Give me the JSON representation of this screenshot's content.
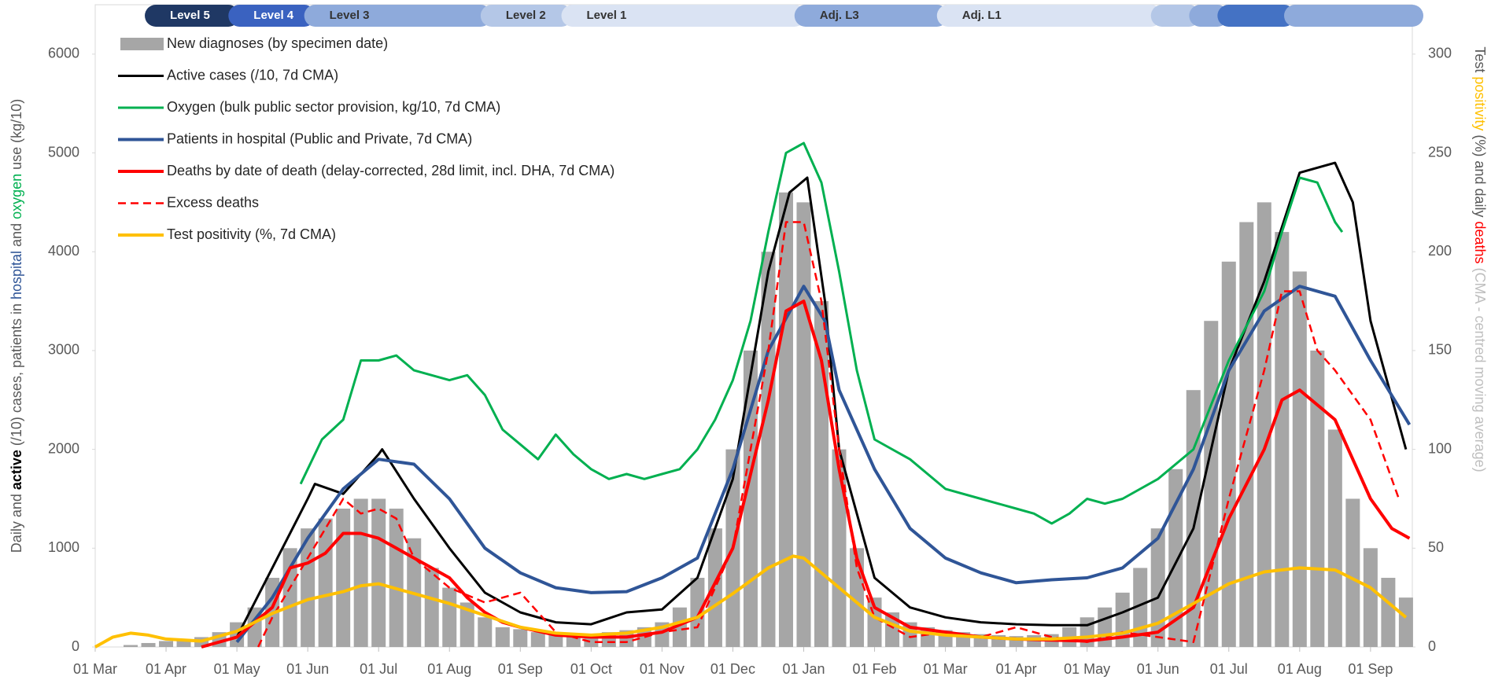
{
  "chart_data": {
    "type": "line",
    "xlim": [
      0,
      18.59
    ],
    "xticks": [
      {
        "value": 0,
        "label": "01 Mar"
      },
      {
        "value": 1,
        "label": "01 Apr"
      },
      {
        "value": 2,
        "label": "01 May"
      },
      {
        "value": 3,
        "label": "01 Jun"
      },
      {
        "value": 4,
        "label": "01 Jul"
      },
      {
        "value": 5,
        "label": "01 Aug"
      },
      {
        "value": 6,
        "label": "01 Sep"
      },
      {
        "value": 7,
        "label": "01 Oct"
      },
      {
        "value": 8,
        "label": "01 Nov"
      },
      {
        "value": 9,
        "label": "01 Dec"
      },
      {
        "value": 10,
        "label": "01 Jan"
      },
      {
        "value": 11,
        "label": "01 Feb"
      },
      {
        "value": 12,
        "label": "01 Mar"
      },
      {
        "value": 13,
        "label": "01 Apr"
      },
      {
        "value": 14,
        "label": "01 May"
      },
      {
        "value": 15,
        "label": "01 Jun"
      },
      {
        "value": 16,
        "label": "01 Jul"
      },
      {
        "value": 17,
        "label": "01 Aug"
      },
      {
        "value": 18,
        "label": "01 Sep"
      }
    ],
    "ylim": [
      0,
      6500
    ],
    "yticks": [
      0,
      1000,
      2000,
      3000,
      4000,
      5000,
      6000
    ],
    "y2lim": [
      0,
      325
    ],
    "y2ticks": [
      0,
      50,
      100,
      150,
      200,
      250,
      300
    ],
    "grid": false,
    "legend": "upper left",
    "ylabel": [
      {
        "text": "Daily and ",
        "color": "#595959"
      },
      {
        "text": "active",
        "color": "#000000"
      },
      {
        "text": " (/10) cases, patients in ",
        "color": "#595959"
      },
      {
        "text": "hospital",
        "color": "#2f5597"
      },
      {
        "text": " and ",
        "color": "#595959"
      },
      {
        "text": "oxygen",
        "color": "#00b050"
      },
      {
        "text": " use (kg/10)",
        "color": "#595959"
      }
    ],
    "y2label": [
      {
        "text": "Test ",
        "color": "#595959"
      },
      {
        "text": "positivity",
        "color": "#ffc000"
      },
      {
        "text": " (%) and daily ",
        "color": "#595959"
      },
      {
        "text": "deaths",
        "color": "#ff0000"
      },
      {
        "text": " (CMA - centred moving average)",
        "color": "#bfbfbf"
      }
    ],
    "levels": [
      {
        "label": "Level 5",
        "start": 0.7,
        "end": 1.88,
        "color": "#1f3864"
      },
      {
        "label": "Level 4",
        "start": 1.88,
        "end": 2.95,
        "color": "#3a62c0"
      },
      {
        "label": "Level 3",
        "start": 2.95,
        "end": 5.44,
        "color": "#8eaadb"
      },
      {
        "label": "Level 2",
        "start": 5.44,
        "end": 6.58,
        "color": "#b4c7e7"
      },
      {
        "label": "Level 1",
        "start": 6.58,
        "end": 9.87,
        "color": "#dae3f3"
      },
      {
        "label": "Adj. L3",
        "start": 9.87,
        "end": 11.88,
        "color": "#8eaadb"
      },
      {
        "label": "Adj. L1",
        "start": 11.88,
        "end": 14.9,
        "color": "#dae3f3"
      },
      {
        "label": null,
        "start": 14.9,
        "end": 15.44,
        "color": "#b4c7e7"
      },
      {
        "label": null,
        "start": 15.44,
        "end": 15.84,
        "color": "#8eaadb"
      },
      {
        "label": null,
        "start": 15.84,
        "end": 16.78,
        "color": "#4472c4"
      },
      {
        "label": null,
        "start": 16.78,
        "end": 18.59,
        "color": "#8eaadb"
      }
    ],
    "series": [
      {
        "name": "New diagnoses (by specimen date)",
        "type": "bar",
        "color": "#a6a6a6",
        "x": [
          0,
          0.25,
          0.5,
          0.75,
          1,
          1.25,
          1.5,
          1.75,
          2,
          2.25,
          2.5,
          2.75,
          3,
          3.25,
          3.5,
          3.75,
          4,
          4.25,
          4.5,
          4.75,
          5,
          5.25,
          5.5,
          5.75,
          6,
          6.25,
          6.5,
          6.75,
          7,
          7.25,
          7.5,
          7.75,
          8,
          8.25,
          8.5,
          8.75,
          9,
          9.25,
          9.5,
          9.75,
          10,
          10.25,
          10.5,
          10.75,
          11,
          11.25,
          11.5,
          11.75,
          12,
          12.25,
          12.5,
          12.75,
          13,
          13.25,
          13.5,
          13.75,
          14,
          14.25,
          14.5,
          14.75,
          15,
          15.25,
          15.5,
          15.75,
          16,
          16.25,
          16.5,
          16.75,
          17,
          17.25,
          17.5,
          17.75,
          18,
          18.25,
          18.5
        ],
        "values": [
          0,
          0,
          20,
          40,
          60,
          80,
          100,
          150,
          250,
          400,
          700,
          1000,
          1200,
          1300,
          1400,
          1500,
          1500,
          1400,
          1100,
          800,
          600,
          450,
          300,
          200,
          180,
          150,
          120,
          110,
          120,
          150,
          170,
          200,
          250,
          400,
          700,
          1200,
          2000,
          3000,
          4000,
          4600,
          4500,
          3500,
          2000,
          1000,
          500,
          350,
          250,
          200,
          170,
          150,
          130,
          120,
          110,
          120,
          130,
          200,
          300,
          400,
          550,
          800,
          1200,
          1800,
          2600,
          3300,
          3900,
          4300,
          4500,
          4200,
          3800,
          3000,
          2200,
          1500,
          1000,
          700,
          500
        ]
      },
      {
        "name": "Active cases (/10, 7d CMA)",
        "color": "#000000",
        "width": 3,
        "x": [
          1.5,
          2,
          3,
          3.1,
          3.5,
          4,
          4.05,
          4.5,
          5,
          5.5,
          6,
          6.5,
          7,
          7.5,
          8,
          8.5,
          9,
          9.5,
          9.8,
          10.05,
          10.3,
          10.5,
          11,
          11.5,
          12,
          12.5,
          13,
          13.5,
          14,
          14.5,
          15,
          15.5,
          16,
          16.5,
          17,
          17.5,
          17.75,
          18,
          18.5
        ],
        "values": [
          0,
          100,
          1500,
          1650,
          1550,
          1950,
          2000,
          1500,
          1000,
          550,
          350,
          250,
          230,
          350,
          380,
          700,
          1700,
          3800,
          4600,
          4750,
          3500,
          2000,
          700,
          400,
          300,
          250,
          230,
          220,
          220,
          350,
          500,
          1200,
          2800,
          3700,
          4800,
          4900,
          4500,
          3300,
          2000
        ]
      },
      {
        "name": "Oxygen (bulk public sector provision, kg/10, 7d CMA)",
        "color": "#00b050",
        "width": 3,
        "x": [
          2.9,
          3.2,
          3.5,
          3.75,
          4,
          4.25,
          4.5,
          4.75,
          5,
          5.25,
          5.5,
          5.75,
          6,
          6.25,
          6.5,
          6.75,
          7,
          7.25,
          7.5,
          7.75,
          8,
          8.25,
          8.5,
          8.75,
          9,
          9.25,
          9.5,
          9.75,
          10,
          10.25,
          10.5,
          10.75,
          11,
          11.5,
          12,
          12.5,
          13,
          13.25,
          13.5,
          13.75,
          14,
          14.25,
          14.5,
          15,
          15.5,
          16,
          16.5,
          16.75,
          17,
          17.25,
          17.5,
          17.6
        ],
        "values": [
          1650,
          2100,
          2300,
          2900,
          2900,
          2950,
          2800,
          2750,
          2700,
          2750,
          2550,
          2200,
          2050,
          1900,
          2150,
          1950,
          1800,
          1700,
          1750,
          1700,
          1750,
          1800,
          2000,
          2300,
          2700,
          3300,
          4200,
          5000,
          5100,
          4700,
          3800,
          2800,
          2100,
          1900,
          1600,
          1500,
          1400,
          1350,
          1250,
          1350,
          1500,
          1450,
          1500,
          1700,
          2000,
          2900,
          3600,
          4200,
          4750,
          4700,
          4300,
          4200
        ]
      },
      {
        "name": "Patients in hospital (Public and Private, 7d CMA)",
        "color": "#2f5597",
        "width": 4,
        "x": [
          2,
          2.5,
          3,
          3.5,
          4,
          4.5,
          5,
          5.5,
          6,
          6.5,
          7,
          7.5,
          8,
          8.5,
          9,
          9.5,
          10,
          10.3,
          10.5,
          11,
          11.5,
          12,
          12.5,
          13,
          13.5,
          14,
          14.5,
          15,
          15.5,
          16,
          16.5,
          17,
          17.5,
          18,
          18.55
        ],
        "values": [
          50,
          500,
          1100,
          1600,
          1900,
          1850,
          1500,
          1000,
          750,
          600,
          550,
          560,
          700,
          900,
          1800,
          3000,
          3650,
          3300,
          2600,
          1800,
          1200,
          900,
          750,
          650,
          680,
          700,
          800,
          1100,
          1800,
          2800,
          3400,
          3650,
          3550,
          2900,
          2250
        ]
      },
      {
        "name": "Deaths by date of death (delay-corrected, 28d limit, incl. DHA, 7d CMA)",
        "color": "#ff0000",
        "width": 4,
        "axis": "y2",
        "x": [
          1.5,
          2,
          2.5,
          2.75,
          3,
          3.25,
          3.5,
          3.75,
          4,
          4.25,
          4.5,
          4.75,
          5,
          5.25,
          5.5,
          5.75,
          6,
          6.5,
          7,
          7.5,
          8,
          8.5,
          9,
          9.5,
          9.75,
          10,
          10.25,
          10.5,
          10.75,
          11,
          11.5,
          12,
          12.5,
          13,
          13.5,
          14,
          14.5,
          15,
          15.5,
          16,
          16.5,
          16.75,
          17,
          17.5,
          18,
          18.3,
          18.55
        ],
        "values": [
          0,
          5,
          20,
          40,
          42.5,
          47.5,
          57.5,
          57.5,
          55,
          50,
          45,
          40,
          35,
          25,
          17.5,
          12.5,
          10,
          6,
          5,
          5,
          7.5,
          15,
          50,
          125,
          170,
          175,
          145,
          90,
          45,
          20,
          10,
          7.5,
          5,
          4,
          3.5,
          3,
          5,
          7.5,
          20,
          65,
          100,
          125,
          130,
          115,
          75,
          60,
          55
        ]
      },
      {
        "name": "Excess deaths",
        "color": "#ff0000",
        "width": 2.5,
        "dash": true,
        "axis": "y2",
        "x": [
          2.3,
          2.5,
          3,
          3.25,
          3.5,
          3.75,
          4,
          4.25,
          4.5,
          5,
          5.5,
          6,
          6.5,
          7,
          7.5,
          8,
          8.5,
          9,
          9.5,
          9.75,
          10,
          10.25,
          10.5,
          10.75,
          11,
          11.5,
          12,
          12.5,
          13,
          13.5,
          14,
          14.5,
          15,
          15.5,
          16,
          16.5,
          16.75,
          17,
          17.25,
          17.5,
          18,
          18.4
        ],
        "values": [
          0,
          15,
          45,
          60,
          75,
          67.5,
          70,
          65,
          45,
          30,
          22.5,
          27.5,
          7.5,
          2.5,
          2.5,
          7.5,
          10,
          50,
          150,
          215,
          215,
          175,
          100,
          40,
          15,
          5,
          7.5,
          5,
          10,
          5,
          2.5,
          7.5,
          5,
          2.5,
          75,
          140,
          180,
          180,
          150,
          140,
          115,
          75
        ]
      },
      {
        "name": "Test positivity (%, 7d CMA)",
        "color": "#ffc000",
        "width": 4,
        "axis": "y2",
        "x": [
          0,
          0.25,
          0.5,
          0.75,
          1,
          1.5,
          2,
          2.5,
          3,
          3.5,
          3.75,
          4,
          4.5,
          5,
          5.5,
          6,
          6.5,
          7,
          7.5,
          8,
          8.5,
          9,
          9.5,
          9.85,
          10,
          10.5,
          11,
          11.5,
          12,
          12.5,
          13,
          13.5,
          14,
          14.5,
          15,
          15.5,
          16,
          16.5,
          17,
          17.5,
          18,
          18.5
        ],
        "values": [
          0,
          5,
          7,
          6,
          4,
          3,
          8,
          17,
          24,
          28,
          31,
          32,
          27,
          22,
          16,
          10,
          7,
          6,
          7,
          10,
          15,
          27,
          40,
          46,
          45,
          30,
          15,
          8,
          6,
          5,
          4,
          4,
          5,
          7,
          12,
          22,
          32,
          38,
          40,
          39,
          30,
          15
        ]
      }
    ]
  }
}
